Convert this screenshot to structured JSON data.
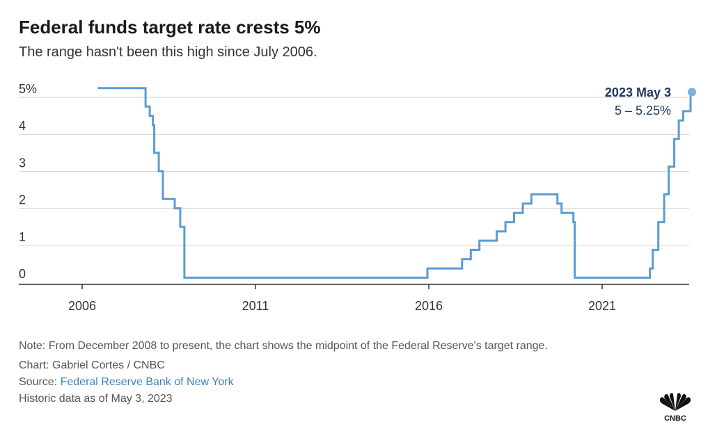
{
  "header": {
    "title": "Federal funds target rate crests 5%",
    "subtitle": "The range hasn't been this high since July 2006."
  },
  "annotation": {
    "date": "2023 May 3",
    "value": "5 – 5.25%"
  },
  "footer": {
    "note": "Note: From December 2008 to present, the chart shows the midpoint of the Federal Reserve's target range.",
    "credit": "Chart: Gabriel Cortes / CNBC",
    "source_label": "Source: ",
    "source_link": "Federal Reserve Bank of New York",
    "asof": "Historic data as of May 3, 2023"
  },
  "logo": {
    "icon": "peacock-icon",
    "text": "CNBC"
  },
  "colors": {
    "line": "#5b9bd5",
    "grid": "#d0d0d0",
    "axis": "#333333",
    "annotation": "#1f3864",
    "dot": "#7fb0e0"
  },
  "chart_data": {
    "type": "line",
    "step": true,
    "title": "Federal funds target rate crests 5%",
    "xlabel": "",
    "ylabel": "",
    "xlim": [
      2005.0,
      2023.55
    ],
    "ylim": [
      0,
      5.25
    ],
    "xticks": [
      2006,
      2011,
      2016,
      2021
    ],
    "xtick_labels": [
      "2006",
      "2011",
      "2016",
      "2021"
    ],
    "yticks": [
      0,
      1,
      2,
      3,
      4,
      5
    ],
    "ytick_labels": [
      "0",
      "1",
      "2",
      "3",
      "4",
      "5%"
    ],
    "grid": true,
    "series": [
      {
        "x": [
          2006.45,
          2007.7,
          2007.83,
          2007.95,
          2008.04,
          2008.08,
          2008.21,
          2008.33,
          2008.67,
          2008.83,
          2008.95,
          2015.96,
          2016.96,
          2017.21,
          2017.46,
          2017.96,
          2018.21,
          2018.46,
          2018.71,
          2018.96,
          2019.58,
          2019.71,
          2019.83,
          2020.17,
          2020.21,
          2022.21,
          2022.38,
          2022.46,
          2022.62,
          2022.79,
          2022.92,
          2023.08,
          2023.21,
          2023.34
        ],
        "y": [
          5.25,
          5.25,
          4.75,
          4.5,
          4.25,
          3.5,
          3.0,
          2.25,
          2.0,
          1.5,
          0.125,
          0.375,
          0.625,
          0.875,
          1.125,
          1.375,
          1.625,
          1.875,
          2.125,
          2.375,
          2.375,
          2.125,
          1.875,
          1.625,
          0.125,
          0.125,
          0.375,
          0.875,
          1.625,
          2.375,
          3.125,
          3.875,
          4.375,
          4.625
        ],
        "end": [
          2023.55,
          5.125
        ]
      }
    ]
  }
}
